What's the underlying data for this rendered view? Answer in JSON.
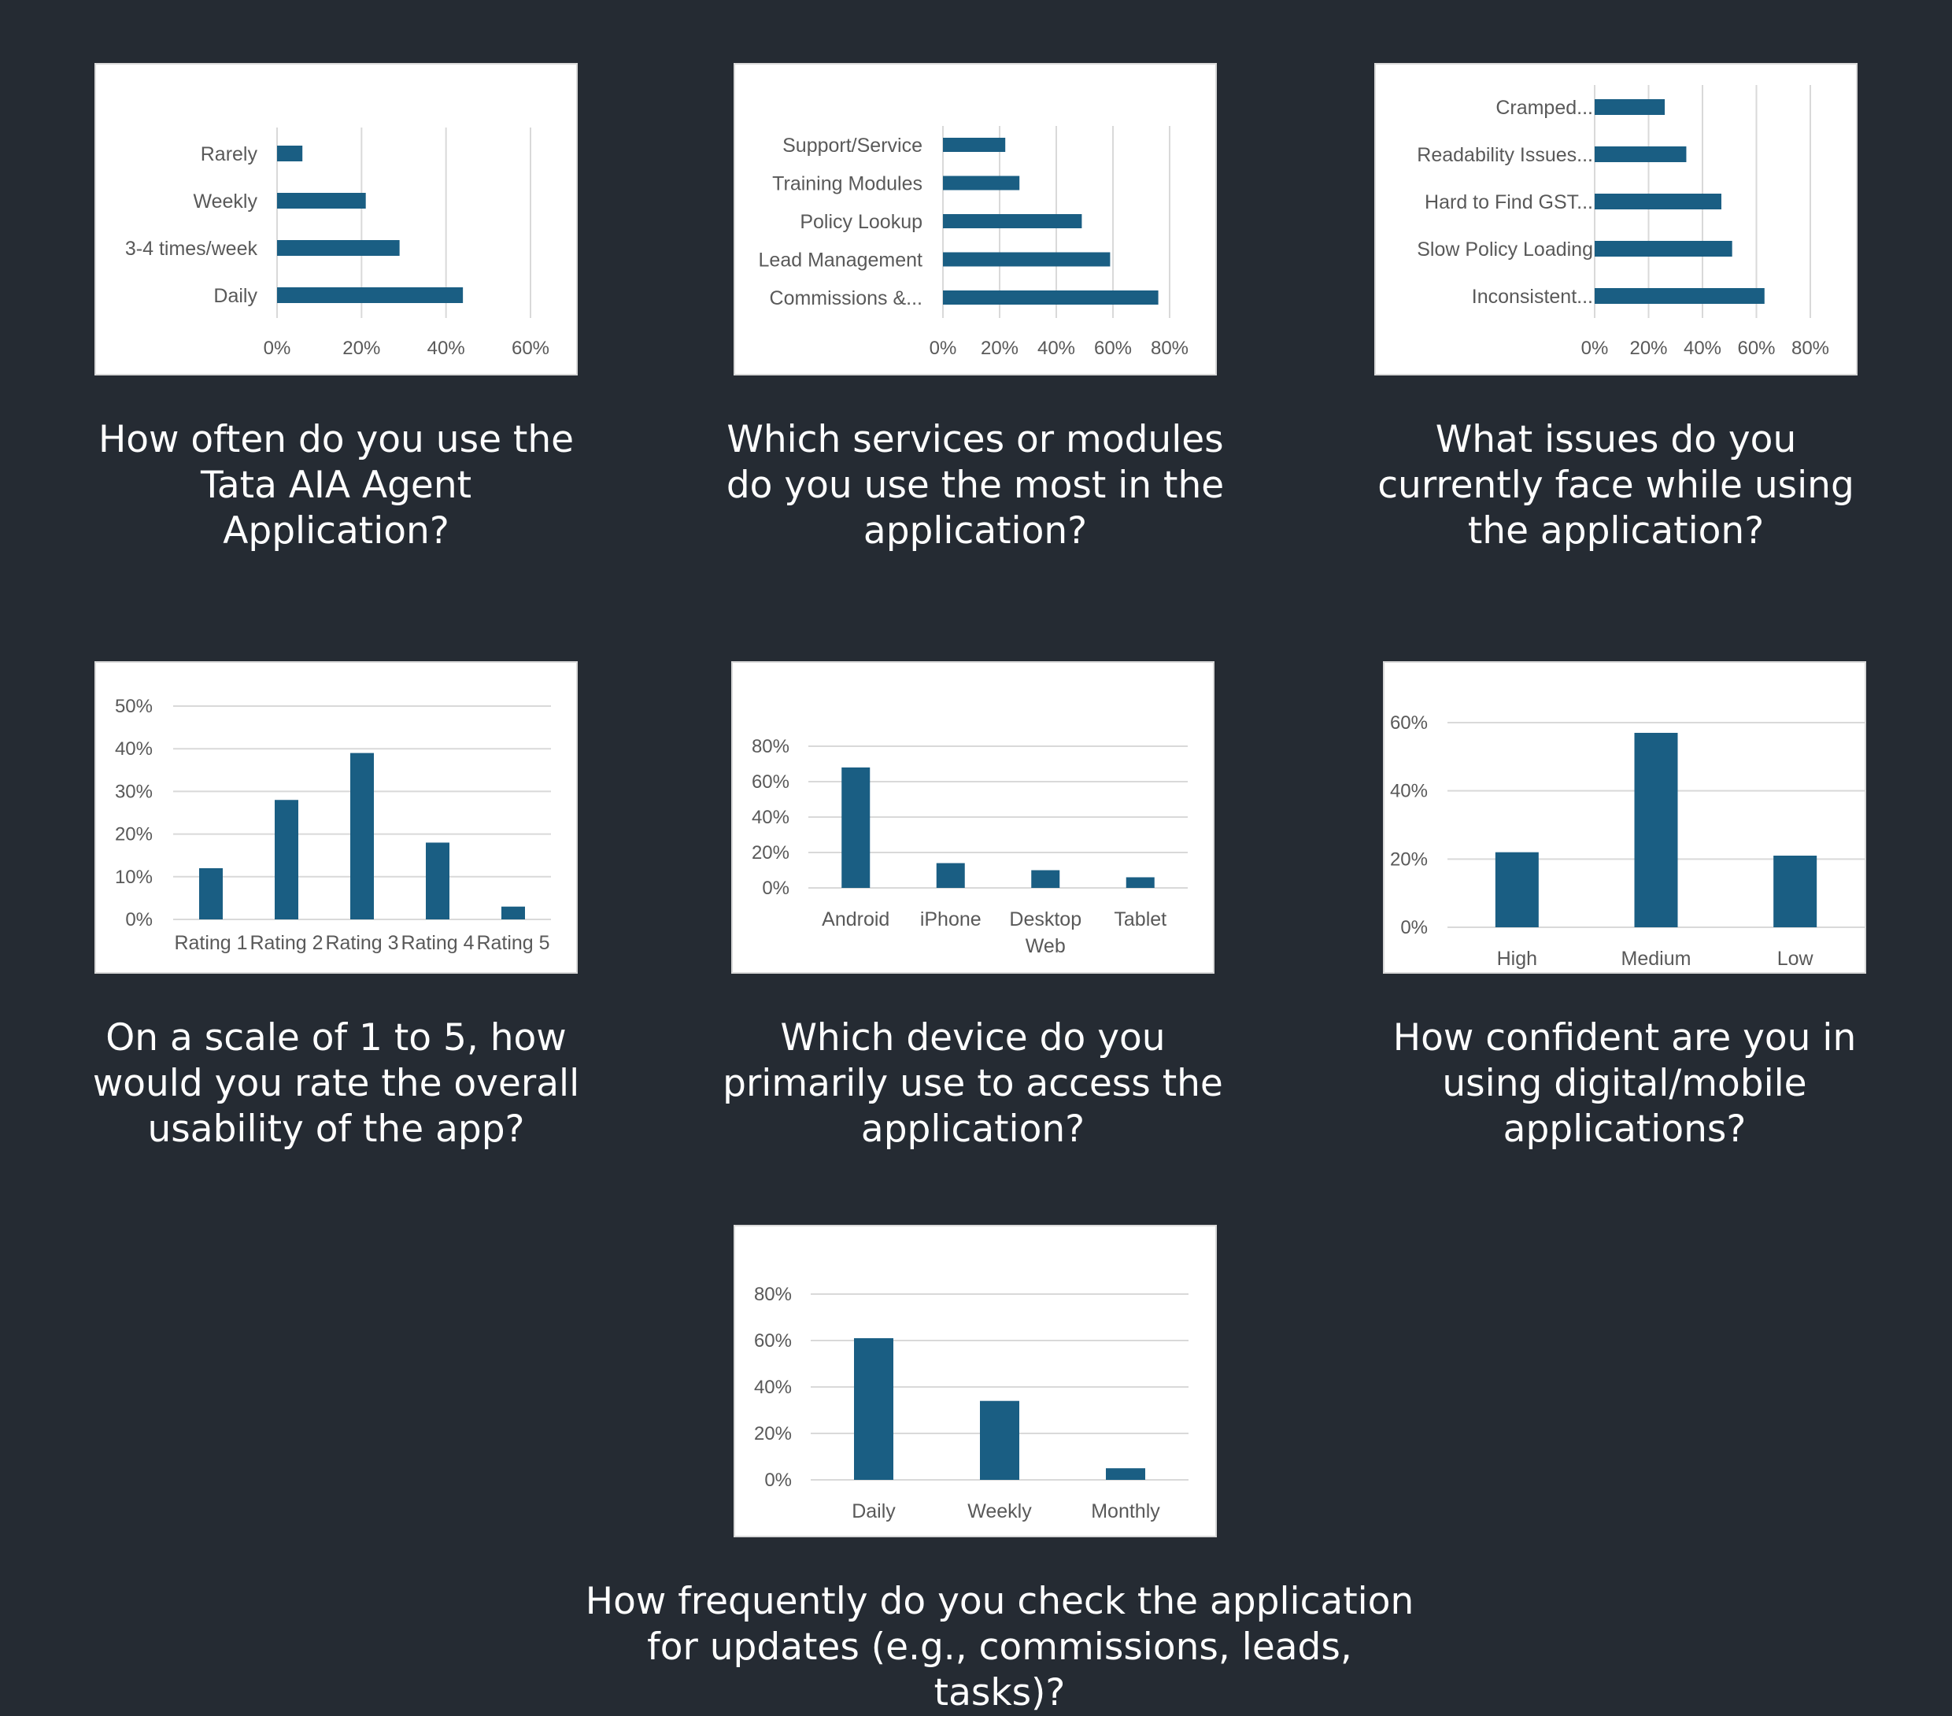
{
  "colors": {
    "background": "#252b33",
    "bar": "#1a5e83",
    "grid": "#d9d9d9",
    "panel": "#ffffff",
    "text": "#595959",
    "caption": "#ffffff"
  },
  "questions": [
    "How often do you use the Tata AIA Agent Application?",
    "Which services or modules do you use the most in the application?",
    "What issues do you currently face while using the application?",
    "On a scale of 1 to 5, how would you rate the overall usability of the app?",
    "Which device do you primarily use to access the application?",
    "How confident are you in using digital/mobile applications?",
    "How frequently do you check the application for updates (e.g., commissions, leads, tasks)?"
  ],
  "chart_data": [
    {
      "type": "bar",
      "orientation": "horizontal",
      "title": "How often do you use the Tata AIA Agent Application?",
      "categories": [
        "Rarely",
        "Weekly",
        "3-4 times/week",
        "Daily"
      ],
      "values": [
        6,
        21,
        29,
        44
      ],
      "ticks": [
        "0%",
        "20%",
        "40%",
        "60%"
      ],
      "xlim": [
        0,
        60
      ],
      "grid": true,
      "legend": "none"
    },
    {
      "type": "bar",
      "orientation": "horizontal",
      "title": "Which services or modules do you use the most in the application?",
      "categories": [
        "Support/Service",
        "Training Modules",
        "Policy Lookup",
        "Lead Management",
        "Commissions &..."
      ],
      "values": [
        22,
        27,
        49,
        59,
        76
      ],
      "ticks": [
        "0%",
        "20%",
        "40%",
        "60%",
        "80%"
      ],
      "xlim": [
        0,
        80
      ],
      "grid": true,
      "legend": "none"
    },
    {
      "type": "bar",
      "orientation": "horizontal",
      "title": "What issues do you currently face while using the application?",
      "categories": [
        "Cramped...",
        "Readability Issues...",
        "Hard to Find GST...",
        "Slow Policy Loading",
        "Inconsistent..."
      ],
      "values": [
        26,
        34,
        47,
        51,
        63
      ],
      "ticks": [
        "0%",
        "20%",
        "40%",
        "60%",
        "80%"
      ],
      "xlim": [
        0,
        80
      ],
      "grid": true,
      "legend": "none"
    },
    {
      "type": "bar",
      "orientation": "vertical",
      "title": "On a scale of 1 to 5, how would you rate the overall usability of the app?",
      "categories": [
        "Rating 1",
        "Rating 2",
        "Rating 3",
        "Rating 4",
        "Rating 5"
      ],
      "values": [
        12,
        28,
        39,
        18,
        3
      ],
      "ticks": [
        "0%",
        "10%",
        "20%",
        "30%",
        "40%",
        "50%"
      ],
      "ylim": [
        0,
        50
      ],
      "grid": true,
      "legend": "none"
    },
    {
      "type": "bar",
      "orientation": "vertical",
      "title": "Which device do you primarily use to access the application?",
      "categories": [
        "Android",
        "iPhone",
        "Desktop Web",
        "Tablet"
      ],
      "values": [
        68,
        14,
        10,
        6
      ],
      "ticks": [
        "0%",
        "20%",
        "40%",
        "60%",
        "80%"
      ],
      "ylim": [
        0,
        80
      ],
      "grid": true,
      "legend": "none"
    },
    {
      "type": "bar",
      "orientation": "vertical",
      "title": "How confident are you in using digital/mobile applications?",
      "categories": [
        "High",
        "Medium",
        "Low"
      ],
      "values": [
        22,
        57,
        21
      ],
      "ticks": [
        "0%",
        "20%",
        "40%",
        "60%"
      ],
      "ylim": [
        0,
        60
      ],
      "grid": true,
      "legend": "none"
    },
    {
      "type": "bar",
      "orientation": "vertical",
      "title": "How frequently do you check the application for updates (e.g., commissions, leads, tasks)?",
      "categories": [
        "Daily",
        "Weekly",
        "Monthly"
      ],
      "values": [
        61,
        34,
        5
      ],
      "ticks": [
        "0%",
        "20%",
        "40%",
        "60%",
        "80%"
      ],
      "ylim": [
        0,
        80
      ],
      "grid": true,
      "legend": "none"
    }
  ]
}
